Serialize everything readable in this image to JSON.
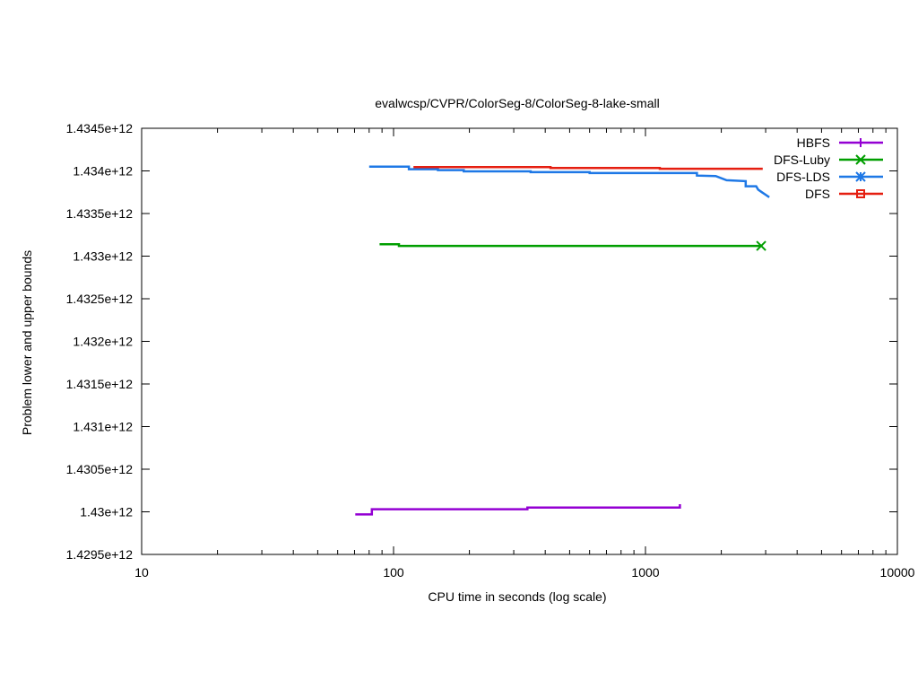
{
  "chart_data": {
    "type": "line",
    "title": "evalwcsp/CVPR/ColorSeg-8/ColorSeg-8-lake-small",
    "xlabel": "CPU time in seconds (log scale)",
    "ylabel": "Problem lower and upper bounds",
    "xscale": "log",
    "xlim": [
      10,
      10000
    ],
    "ylim": [
      1429500000000,
      1434500000000
    ],
    "x_ticks": [
      10,
      100,
      1000,
      10000
    ],
    "x_tick_labels": [
      "10",
      "100",
      "1000",
      "10000"
    ],
    "y_ticks": [
      1429500000000,
      1430000000000,
      1430500000000,
      1431000000000,
      1431500000000,
      1432000000000,
      1432500000000,
      1433000000000,
      1433500000000,
      1434000000000,
      1434500000000
    ],
    "y_tick_labels": [
      "1.4295e+12",
      "1.43e+12",
      "1.4305e+12",
      "1.431e+12",
      "1.4315e+12",
      "1.432e+12",
      "1.4325e+12",
      "1.433e+12",
      "1.4335e+12",
      "1.434e+12",
      "1.4345e+12"
    ],
    "legend_position": "top-right",
    "series": [
      {
        "name": "HBFS",
        "color": "#9400d3",
        "marker": "plus",
        "points": [
          [
            70.5,
            1429970000000
          ],
          [
            82,
            1429970000000
          ],
          [
            82,
            1430030000000
          ],
          [
            340,
            1430030000000
          ],
          [
            340,
            1430050000000
          ],
          [
            1370,
            1430050000000
          ],
          [
            1370,
            1430090000000
          ]
        ]
      },
      {
        "name": "DFS-Luby",
        "color": "#009e00",
        "marker": "x",
        "points": [
          [
            88,
            1433140000000
          ],
          [
            105,
            1433140000000
          ],
          [
            105,
            1433120000000
          ],
          [
            2880,
            1433120000000
          ]
        ]
      },
      {
        "name": "DFS-LDS",
        "color": "#1e78e6",
        "marker": "star",
        "points": [
          [
            80,
            1434050000000
          ],
          [
            115,
            1434050000000
          ],
          [
            115,
            1434020000000
          ],
          [
            150,
            1434020000000
          ],
          [
            150,
            1434010000000
          ],
          [
            190,
            1434010000000
          ],
          [
            190,
            1433995000000
          ],
          [
            350,
            1433995000000
          ],
          [
            350,
            1433985000000
          ],
          [
            600,
            1433985000000
          ],
          [
            600,
            1433975000000
          ],
          [
            1600,
            1433975000000
          ],
          [
            1600,
            1433945000000
          ],
          [
            1900,
            1433940000000
          ],
          [
            2100,
            1433890000000
          ],
          [
            2500,
            1433880000000
          ],
          [
            2500,
            1433820000000
          ],
          [
            2750,
            1433820000000
          ],
          [
            2800,
            1433780000000
          ],
          [
            2900,
            1433750000000
          ],
          [
            3000,
            1433720000000
          ],
          [
            3100,
            1433690000000
          ]
        ]
      },
      {
        "name": "DFS",
        "color": "#e51e10",
        "marker": "square",
        "points": [
          [
            120,
            1434045000000
          ],
          [
            420,
            1434045000000
          ],
          [
            420,
            1434035000000
          ],
          [
            1140,
            1434035000000
          ],
          [
            1140,
            1434025000000
          ],
          [
            2920,
            1434025000000
          ]
        ]
      }
    ]
  }
}
